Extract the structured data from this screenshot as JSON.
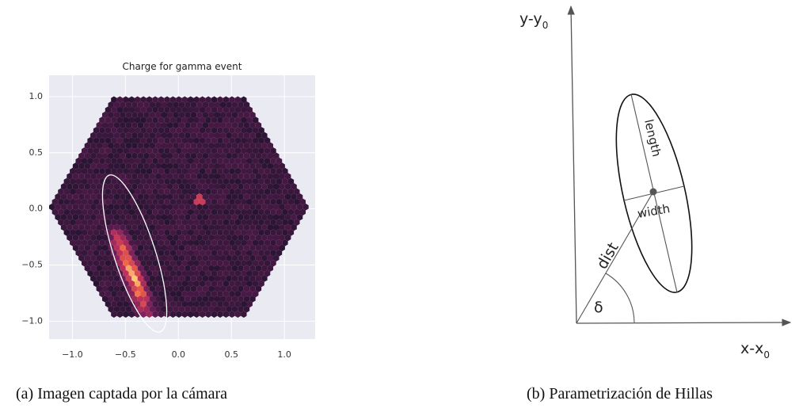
{
  "figure_a": {
    "chart_data": {
      "type": "hex-camera",
      "title": "Charge for gamma event",
      "xlim": [
        -1.22,
        1.29
      ],
      "ylim": [
        -1.16,
        1.19
      ],
      "xticks": [
        {
          "value": -1,
          "label": "−1.0"
        },
        {
          "value": -0.5,
          "label": "−0.5"
        },
        {
          "value": 0,
          "label": "0.0"
        },
        0.5,
        {
          "value": 1,
          "label": "1.0"
        }
      ],
      "yticks": [
        {
          "value": -1,
          "label": "−1.0"
        },
        {
          "value": -0.5,
          "label": "−0.5"
        },
        {
          "value": 0,
          "label": "0.0"
        },
        0.5,
        {
          "value": 1,
          "label": "1.0"
        }
      ],
      "grid": true
    },
    "caption": "(a) Imagen captada por la cámara"
  },
  "figure_b": {
    "labels": {
      "y_axis": "y-y",
      "y_axis_subscript": "0",
      "x_axis": "x-x",
      "x_axis_subscript": "0",
      "length": "length",
      "width": "width",
      "dist": "dist",
      "angle": "δ"
    },
    "caption": "(b) Parametrización de Hillas"
  }
}
